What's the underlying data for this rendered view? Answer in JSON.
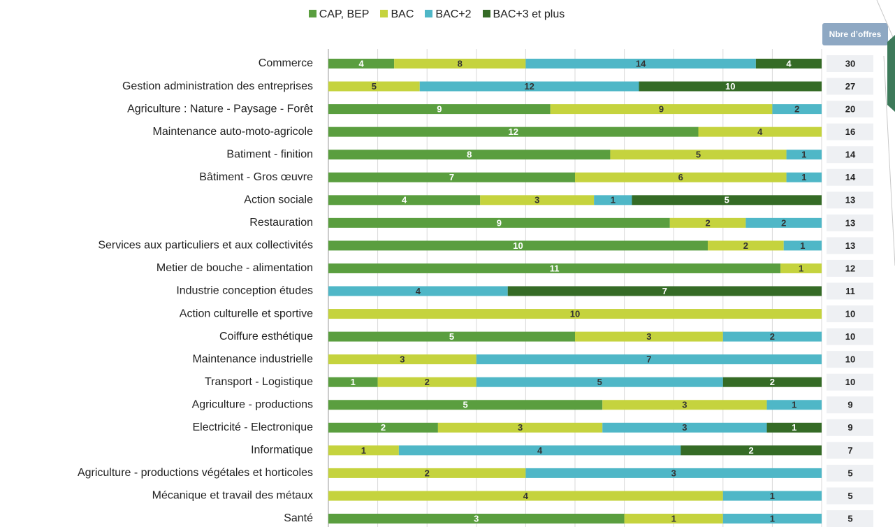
{
  "chart_data": {
    "type": "bar100h",
    "categories": [
      "Commerce",
      "Gestion administration des entreprises",
      "Agriculture : Nature - Paysage - Forêt",
      "Maintenance auto-moto-agricole",
      "Batiment - finition",
      "Bâtiment - Gros œuvre",
      "Action sociale",
      "Restauration",
      "Services aux particuliers et aux collectivités",
      "Metier de bouche - alimentation",
      "Industrie conception études",
      "Action culturelle et sportive",
      "Coiffure esthétique",
      "Maintenance industrielle",
      "Transport - Logistique",
      "Agriculture - productions ",
      "Electricité - Electronique",
      "Informatique",
      "Agriculture - productions végétales et horticoles",
      "Mécanique et travail des métaux",
      "Santé"
    ],
    "series": [
      {
        "name": "CAP, BEP",
        "color": "#5a9e3f",
        "values": [
          4,
          null,
          9,
          12,
          8,
          7,
          4,
          9,
          10,
          11,
          null,
          null,
          5,
          null,
          1,
          5,
          2,
          null,
          null,
          null,
          3
        ]
      },
      {
        "name": "BAC",
        "color": "#c5d33e",
        "values": [
          8,
          5,
          9,
          4,
          5,
          6,
          3,
          2,
          2,
          1,
          null,
          10,
          3,
          3,
          2,
          3,
          3,
          1,
          2,
          4,
          1
        ]
      },
      {
        "name": "BAC+2",
        "color": "#4fb7c7",
        "values": [
          14,
          12,
          2,
          null,
          1,
          1,
          1,
          2,
          1,
          null,
          4,
          null,
          2,
          7,
          5,
          1,
          3,
          4,
          3,
          1,
          1
        ]
      },
      {
        "name": "BAC+3 et plus",
        "color": "#356b26",
        "values": [
          4,
          10,
          null,
          null,
          null,
          null,
          5,
          null,
          null,
          null,
          7,
          null,
          null,
          null,
          2,
          null,
          1,
          2,
          null,
          null,
          null
        ]
      }
    ],
    "totals_title": "Nbre d’offres",
    "totals": [
      30,
      27,
      20,
      16,
      14,
      14,
      13,
      13,
      13,
      12,
      11,
      10,
      10,
      10,
      10,
      9,
      9,
      7,
      5,
      5,
      5
    ],
    "xlim": [
      0,
      100
    ],
    "xticks": [
      0,
      10,
      20,
      30,
      40,
      50,
      60,
      70,
      80,
      90,
      100
    ],
    "grid": true,
    "legend": "top"
  }
}
